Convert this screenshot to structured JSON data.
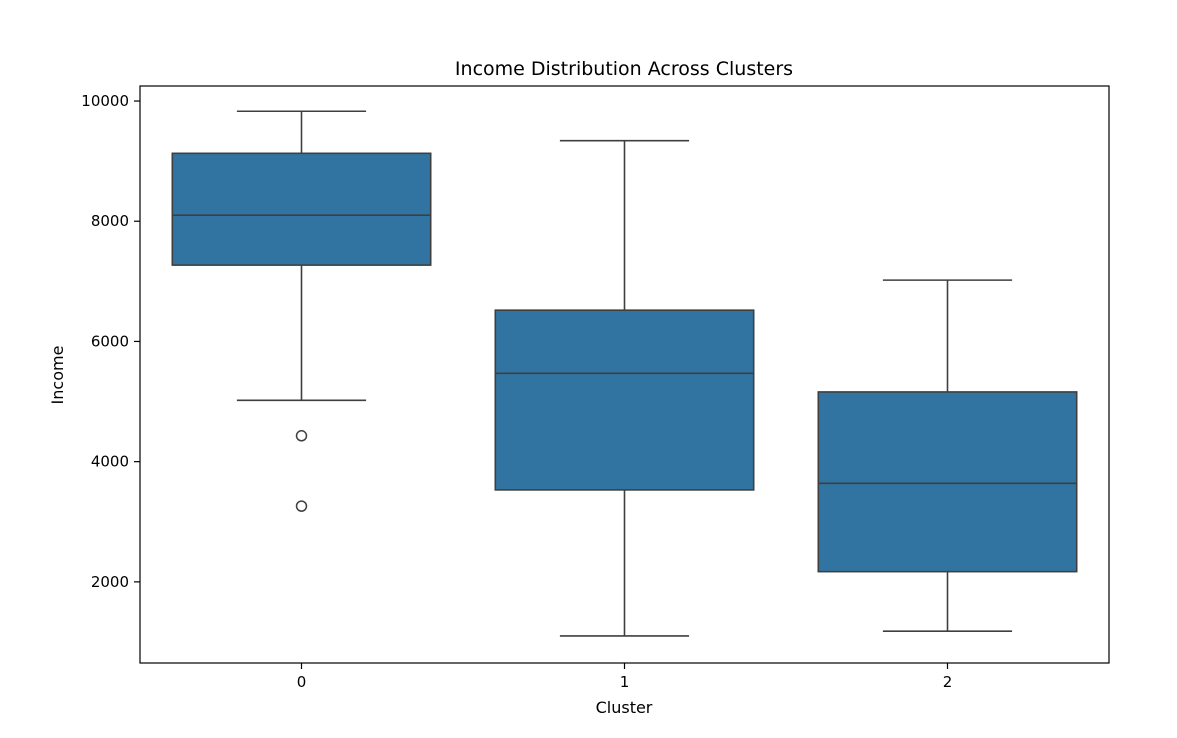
{
  "chart_data": {
    "type": "box",
    "title": "Income Distribution Across Clusters",
    "xlabel": "Cluster",
    "ylabel": "Income",
    "categories": [
      "0",
      "1",
      "2"
    ],
    "ylim": [
      650,
      10250
    ],
    "yticks": [
      2000,
      4000,
      6000,
      8000,
      10000
    ],
    "grid": false,
    "colors": {
      "box_fill": "#3274a1",
      "box_edge": "#3f3f3f",
      "frame": "#000000"
    },
    "boxes": [
      {
        "category": "0",
        "whisker_low": 5020,
        "q1": 7270,
        "median": 8100,
        "q3": 9130,
        "whisker_high": 9830,
        "outliers": [
          4430,
          3260
        ]
      },
      {
        "category": "1",
        "whisker_low": 1100,
        "q1": 3530,
        "median": 5470,
        "q3": 6520,
        "whisker_high": 9340,
        "outliers": []
      },
      {
        "category": "2",
        "whisker_low": 1180,
        "q1": 2170,
        "median": 3640,
        "q3": 5160,
        "whisker_high": 7020,
        "outliers": []
      }
    ]
  }
}
